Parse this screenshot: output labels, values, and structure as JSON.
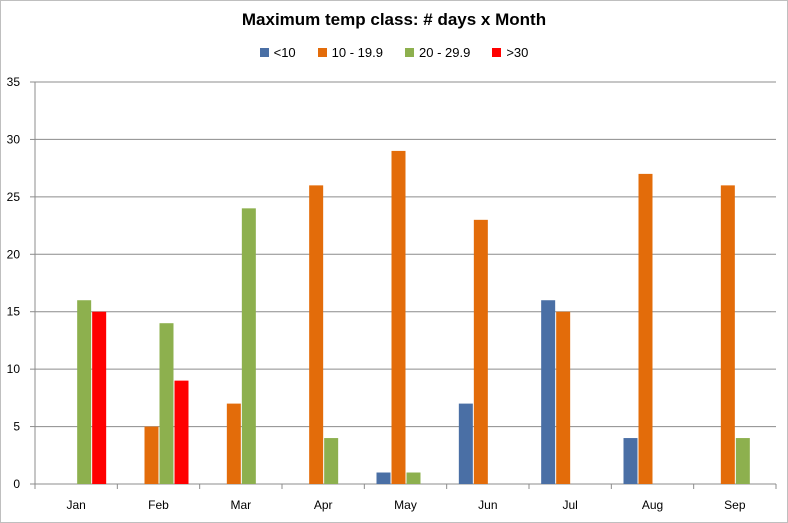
{
  "chart_data": {
    "type": "bar",
    "title": "Maximum  temp class: # days x Month",
    "xlabel": "",
    "ylabel": "",
    "categories": [
      "Jan",
      "Feb",
      "Mar",
      "Apr",
      "May",
      "Jun",
      "Jul",
      "Aug",
      "Sep"
    ],
    "ylim": [
      0,
      35
    ],
    "yticks": [
      "0",
      "5",
      "10",
      "15",
      "20",
      "25",
      "30",
      "35"
    ],
    "grid": true,
    "legend_position": "top",
    "series": [
      {
        "name": "<10",
        "color": "#4a6fa5",
        "values": [
          0,
          0,
          0,
          0,
          1,
          7,
          16,
          4,
          0
        ]
      },
      {
        "name": "10 - 19.9",
        "color": "#e36c0a",
        "values": [
          0,
          5,
          7,
          26,
          29,
          23,
          15,
          27,
          26
        ]
      },
      {
        "name": "20 - 29.9",
        "color": "#8db04e",
        "values": [
          16,
          14,
          24,
          4,
          1,
          0,
          0,
          0,
          4
        ]
      },
      {
        "name": ">30",
        "color": "#ff0000",
        "values": [
          15,
          9,
          0,
          0,
          0,
          0,
          0,
          0,
          0
        ]
      }
    ]
  }
}
